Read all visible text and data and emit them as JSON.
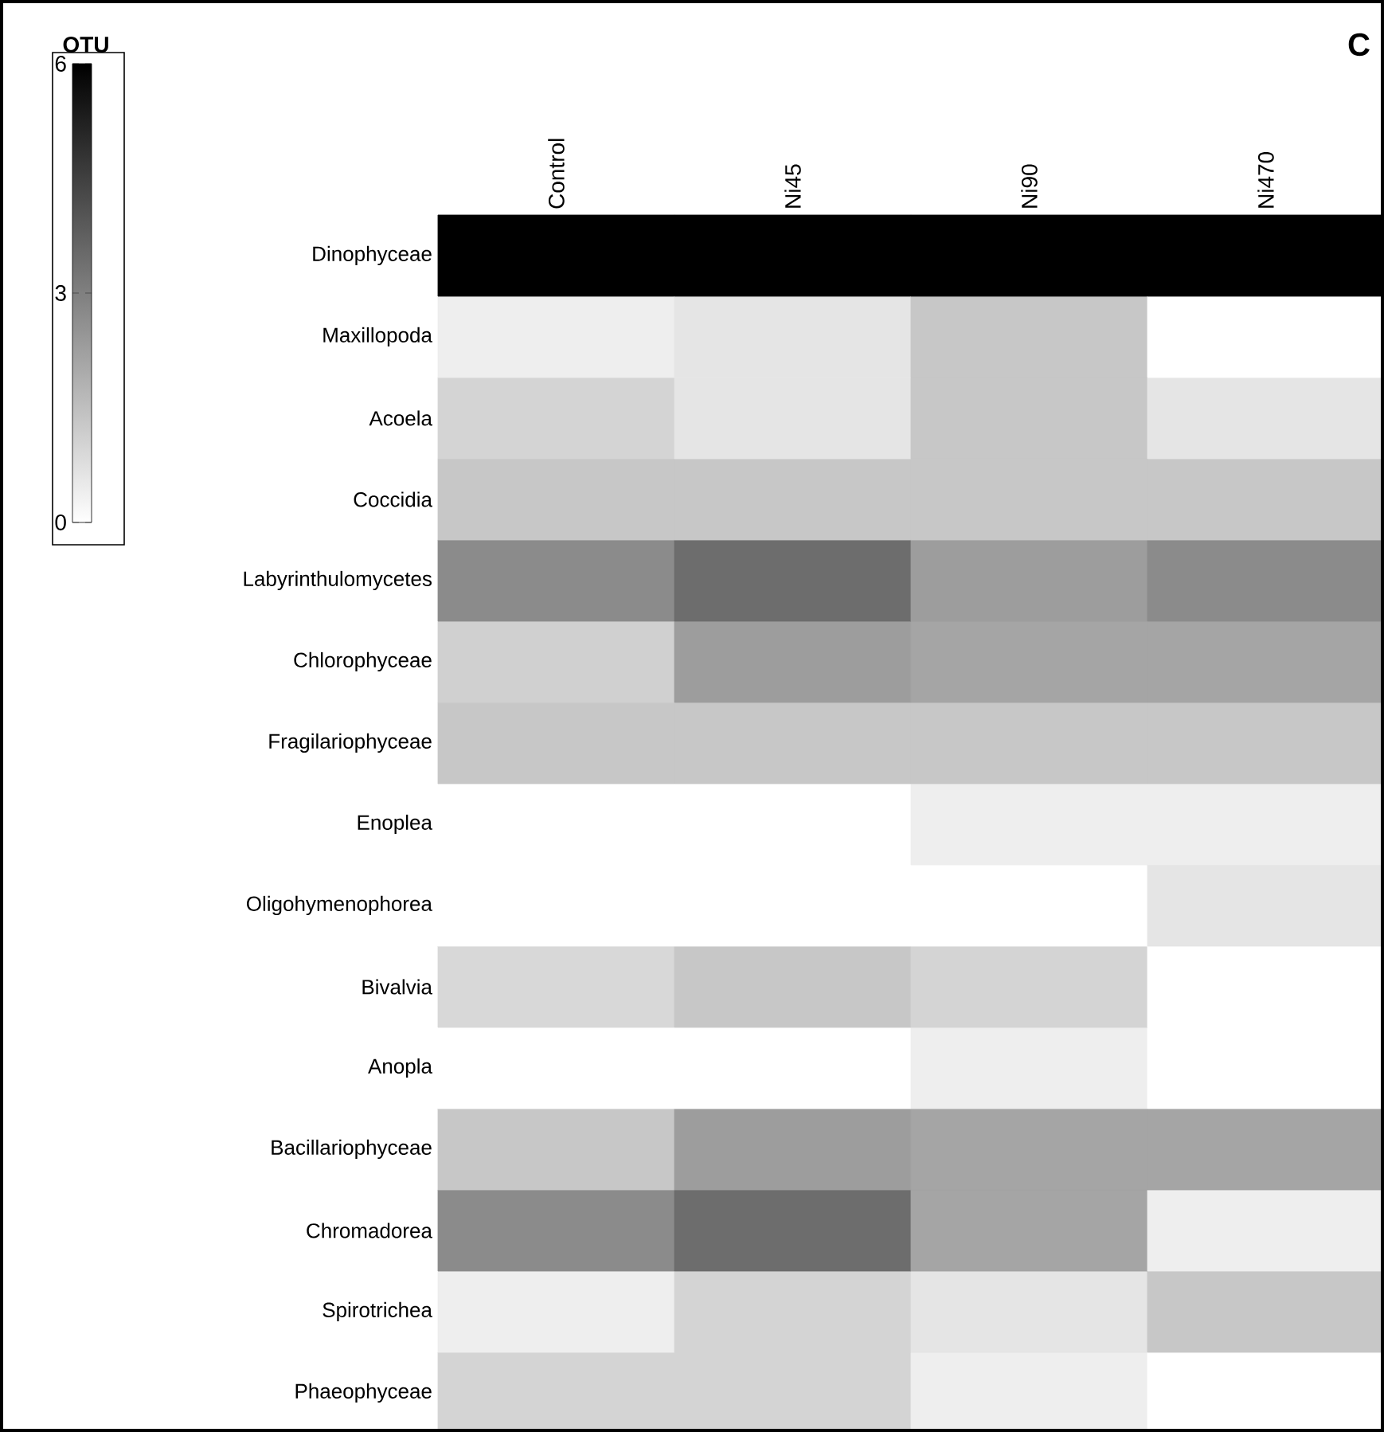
{
  "chart_data": {
    "type": "heatmap",
    "clabel": "OTU",
    "annotations": [
      "C"
    ],
    "categories": [
      "Control",
      "Ni45",
      "Ni90",
      "Ni470"
    ],
    "y_categories": [
      "Dinophyceae",
      "Maxillopoda",
      "Acoela",
      "Coccidia",
      "Labyrinthulomycetes",
      "Chlorophyceae",
      "Fragilariophyceae",
      "Enoplea",
      "Oligohymenophorea",
      "Bivalvia",
      "Anopla",
      "Bacillariophyceae",
      "Chromadorea",
      "Spirotrichea",
      "Phaeophyceae"
    ],
    "cells": [
      [
        6,
        6,
        6,
        6
      ],
      [
        0.4,
        0.6,
        1.3,
        0
      ],
      [
        1.0,
        0.6,
        1.3,
        0.6
      ],
      [
        1.3,
        1.3,
        1.3,
        1.3
      ],
      [
        2.7,
        3.4,
        2.3,
        2.7
      ],
      [
        1.1,
        2.3,
        2.1,
        2.1
      ],
      [
        1.3,
        1.3,
        1.3,
        1.3
      ],
      [
        0,
        0,
        0.4,
        0.4
      ],
      [
        0,
        0,
        0,
        0.6
      ],
      [
        0.9,
        1.3,
        1.0,
        0
      ],
      [
        0,
        0,
        0.4,
        0
      ],
      [
        1.3,
        2.3,
        2.1,
        2.1
      ],
      [
        2.7,
        3.4,
        2.1,
        0.4
      ],
      [
        0.4,
        1.0,
        0.6,
        1.3
      ],
      [
        1.0,
        1.0,
        0.4,
        0
      ]
    ],
    "clim": [
      0,
      6
    ],
    "cticks": [
      0,
      3,
      6
    ]
  }
}
